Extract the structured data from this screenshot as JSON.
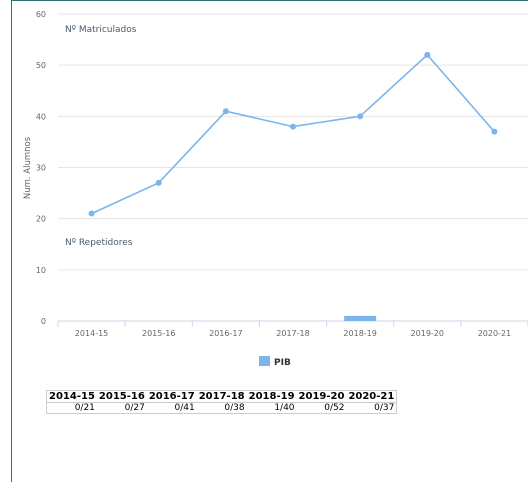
{
  "chart_data": {
    "type": "line",
    "categories": [
      "2014-15",
      "2015-16",
      "2016-17",
      "2017-18",
      "2018-19",
      "2019-20",
      "2020-21"
    ],
    "ylabel": "Num. Alumnos",
    "ylim": [
      0,
      60
    ],
    "yticks": [
      0,
      10,
      20,
      30,
      40,
      50,
      60
    ],
    "grid": true,
    "series": [
      {
        "name": "Nº Matriculados",
        "type": "line",
        "color": "#7cb5ec",
        "values": [
          21,
          27,
          41,
          38,
          40,
          52,
          37
        ]
      },
      {
        "name": "PIB",
        "type": "bar",
        "color": "#7cb5ec",
        "values": [
          0,
          0,
          0,
          0,
          1,
          0,
          0
        ]
      }
    ],
    "annotations": [
      "Nº Matriculados",
      "Nº Repetidores"
    ],
    "legend": {
      "position": "bottom-center",
      "items": [
        "PIB"
      ]
    },
    "table": {
      "headers": [
        "2014-15",
        "2015-16",
        "2016-17",
        "2017-18",
        "2018-19",
        "2019-20",
        "2020-21"
      ],
      "values": [
        "0/21",
        "0/27",
        "0/41",
        "0/38",
        "1/40",
        "0/52",
        "0/37"
      ]
    }
  }
}
